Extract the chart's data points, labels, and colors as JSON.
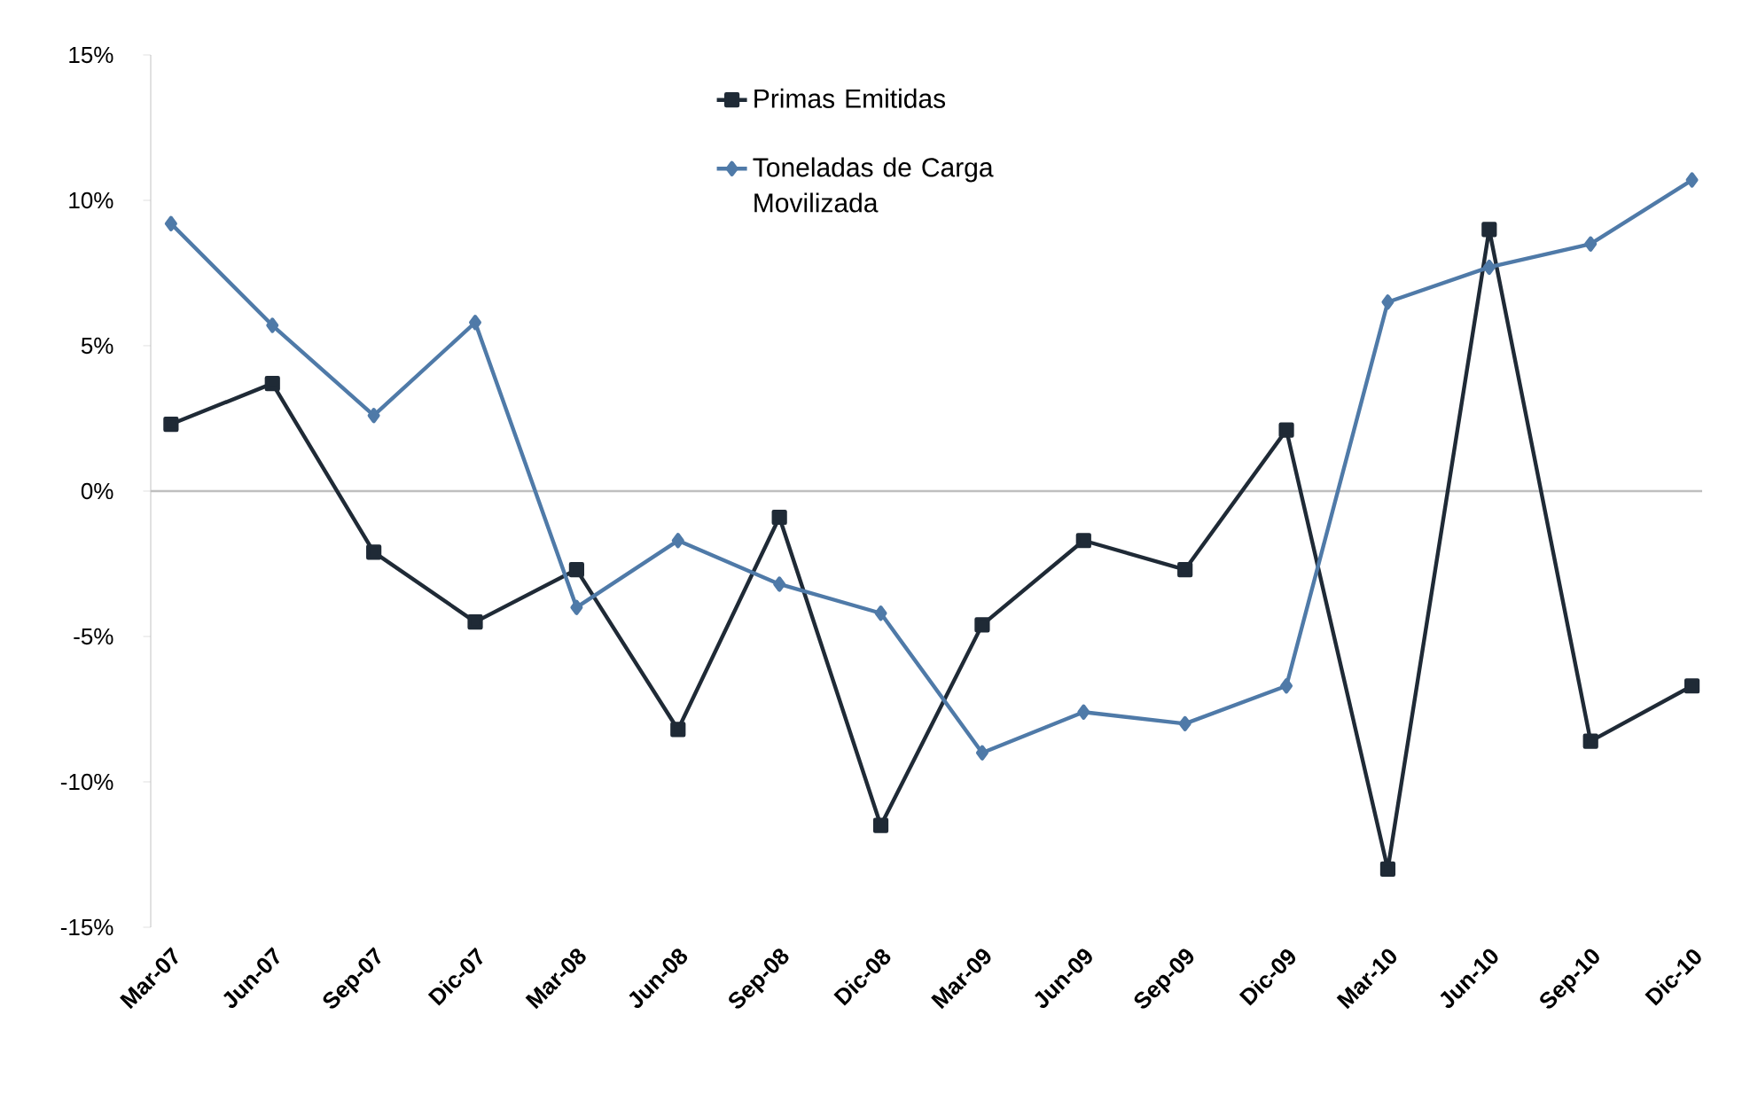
{
  "chart_data": {
    "type": "line",
    "categories": [
      "Mar-07",
      "Jun-07",
      "Sep-07",
      "Dic-07",
      "Mar-08",
      "Jun-08",
      "Sep-08",
      "Dic-08",
      "Mar-09",
      "Jun-09",
      "Sep-09",
      "Dic-09",
      "Mar-10",
      "Jun-10",
      "Sep-10",
      "Dic-10"
    ],
    "series": [
      {
        "name": "Primas Emitidas",
        "color": "#1f2a36",
        "marker": "square",
        "values": [
          2.3,
          3.7,
          -2.1,
          -4.5,
          -2.7,
          -8.2,
          -0.9,
          -11.5,
          -4.6,
          -1.7,
          -2.7,
          2.1,
          -13.0,
          9.0,
          -8.6,
          -6.7
        ]
      },
      {
        "name": "Toneladas de Carga Movilizada",
        "color": "#4f7aa8",
        "marker": "diamond",
        "values": [
          9.2,
          5.7,
          2.6,
          5.8,
          -4.0,
          -1.7,
          -3.2,
          -4.2,
          -9.0,
          -7.6,
          -8.0,
          -6.7,
          6.5,
          7.7,
          8.5,
          10.7
        ]
      }
    ],
    "ylim": [
      -15,
      15
    ],
    "yticks": [
      {
        "value": -15,
        "label": "-15%"
      },
      {
        "value": -10,
        "label": "-10%"
      },
      {
        "value": -5,
        "label": "-5%"
      },
      {
        "value": 0,
        "label": "0%"
      },
      {
        "value": 5,
        "label": "5%"
      },
      {
        "value": 10,
        "label": "10%"
      },
      {
        "value": 15,
        "label": "15%"
      }
    ],
    "ref_lines": [
      {
        "axis": "y",
        "value": 0,
        "color": "#bfbfbf"
      }
    ],
    "legend": "top",
    "line_style": "solid"
  }
}
